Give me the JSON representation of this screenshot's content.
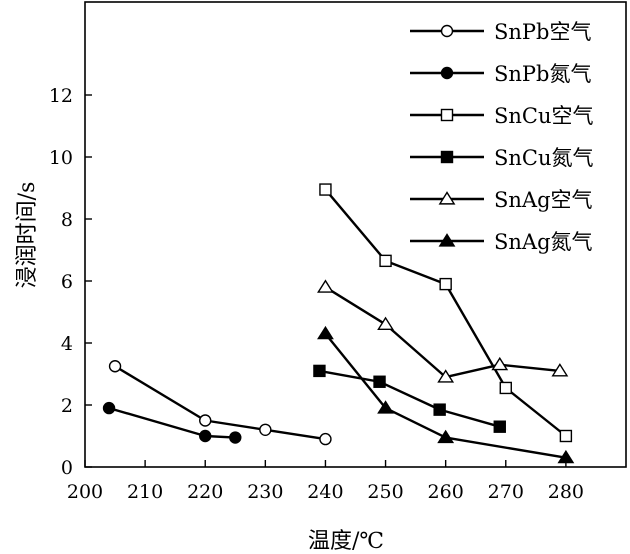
{
  "chart_data": {
    "type": "line",
    "title": "",
    "xlabel": "温度/℃",
    "ylabel": "浸润时间/s",
    "xlim": [
      200,
      290
    ],
    "ylim": [
      0,
      15
    ],
    "xticks": [
      200,
      210,
      220,
      230,
      240,
      250,
      260,
      270,
      280
    ],
    "yticks": [
      0,
      2,
      4,
      6,
      8,
      10,
      12
    ],
    "legend_position": "top-right",
    "series": [
      {
        "name": "SnPb空气",
        "marker": "circle-open",
        "x": [
          205,
          220,
          230,
          240
        ],
        "y": [
          3.25,
          1.5,
          1.2,
          0.9
        ]
      },
      {
        "name": "SnPb氮气",
        "marker": "circle-filled",
        "x": [
          204,
          220,
          225
        ],
        "y": [
          1.9,
          1.0,
          0.95
        ]
      },
      {
        "name": "SnCu空气",
        "marker": "square-open",
        "x": [
          240,
          250,
          260,
          270,
          280
        ],
        "y": [
          8.95,
          6.65,
          5.9,
          2.55,
          1.0
        ]
      },
      {
        "name": "SnCu氮气",
        "marker": "square-filled",
        "x": [
          239,
          249,
          259,
          269
        ],
        "y": [
          3.1,
          2.75,
          1.85,
          1.3
        ]
      },
      {
        "name": "SnAg空气",
        "marker": "triangle-open",
        "x": [
          240,
          250,
          260,
          269,
          279
        ],
        "y": [
          5.8,
          4.6,
          2.9,
          3.3,
          3.1
        ]
      },
      {
        "name": "SnAg氮气",
        "marker": "triangle-filled",
        "x": [
          240,
          250,
          260,
          280
        ],
        "y": [
          4.3,
          1.9,
          0.95,
          0.3
        ]
      }
    ]
  }
}
